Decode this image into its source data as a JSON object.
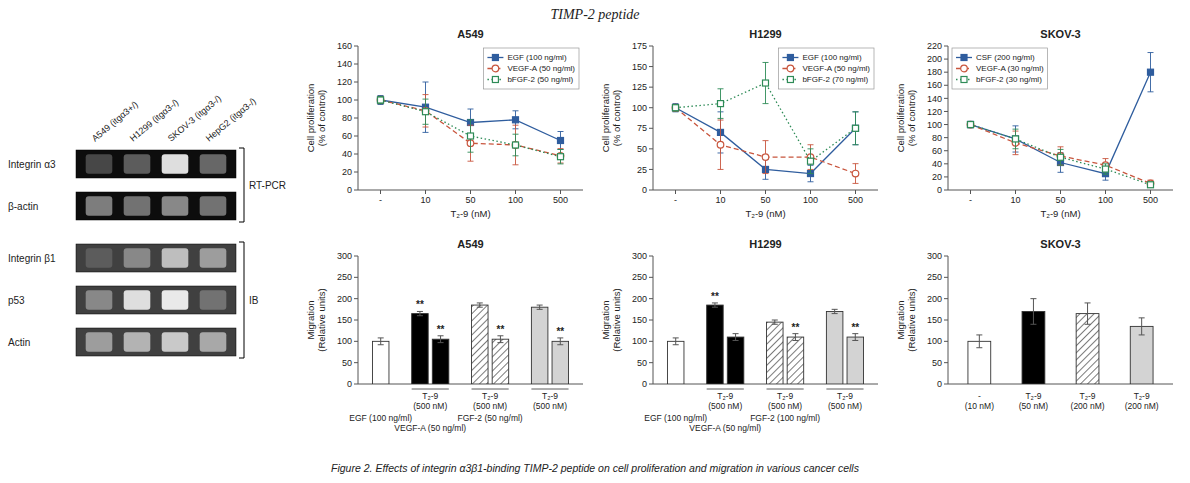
{
  "title": "TIMP-2  peptide",
  "caption": "Figure 2. Effects of integrin α3β1-binding TIMP-2 peptide on cell proliferation and migration in various cancer cells",
  "chart_data": [
    {
      "type": "heatmap",
      "columns": [
        "A549 (itgα3+/)",
        "H1299 (itgα3-/)",
        "SKOV-3 (itgα3-/)",
        "HepG2 (itgα3-/)"
      ],
      "rows": [
        "Integrin α3",
        "β-actin",
        "Integrin β1",
        "p53",
        "Actin"
      ],
      "row_groups": [
        "RT-PCR",
        "RT-PCR",
        "IB",
        "IB",
        "IB"
      ],
      "values": [
        [
          0.85,
          0.75,
          0.15,
          0.7
        ],
        [
          0.6,
          0.65,
          0.55,
          0.65
        ],
        [
          0.75,
          0.55,
          0.3,
          0.45
        ],
        [
          0.55,
          0.15,
          0.1,
          0.65
        ],
        [
          0.45,
          0.35,
          0.25,
          0.4
        ]
      ],
      "background": [
        0.05,
        0.05,
        0.25,
        0.25,
        0.25
      ]
    },
    {
      "type": "line",
      "title": "A549",
      "xlabel": "T₂-9 (nM)",
      "ylabel": "Cell proliferation\n(% of control)",
      "categories": [
        "-",
        "10",
        "50",
        "100",
        "500"
      ],
      "ylim": [
        0,
        160
      ],
      "yticks": [
        0,
        20,
        40,
        60,
        80,
        100,
        120,
        140,
        160
      ],
      "legend": "upper-right",
      "series": [
        {
          "name": "EGF (100 ng/ml)",
          "values": [
            100,
            92,
            75,
            78,
            55
          ],
          "errors": [
            5,
            28,
            15,
            10,
            10
          ],
          "marker": "square",
          "line_style": "solid"
        },
        {
          "name": "VEGF-A (50 ng/ml)",
          "values": [
            100,
            88,
            52,
            50,
            38
          ],
          "errors": [
            4,
            18,
            20,
            22,
            8
          ],
          "marker": "circle-open",
          "line_style": "dashed"
        },
        {
          "name": "bFGF-2 (50 ng/ml)",
          "values": [
            100,
            87,
            60,
            50,
            37
          ],
          "errors": [
            4,
            14,
            18,
            12,
            8
          ],
          "marker": "square-open",
          "line_style": "dotted"
        }
      ]
    },
    {
      "type": "line",
      "title": "H1299",
      "xlabel": "T₂-9 (nM)",
      "ylabel": "Cell proliferation\n(% of control)",
      "categories": [
        "-",
        "10",
        "50",
        "100",
        "500"
      ],
      "ylim": [
        0,
        175
      ],
      "yticks": [
        0,
        25,
        50,
        75,
        100,
        125,
        150,
        175
      ],
      "legend": "upper-right",
      "series": [
        {
          "name": "EGF (100 ng/ml)",
          "values": [
            100,
            70,
            25,
            20,
            75
          ],
          "errors": [
            5,
            25,
            12,
            10,
            20
          ],
          "marker": "square",
          "line_style": "solid"
        },
        {
          "name": "VEGF-A (50 ng/ml)",
          "values": [
            100,
            55,
            40,
            40,
            20
          ],
          "errors": [
            4,
            30,
            20,
            15,
            12
          ],
          "marker": "circle-open",
          "line_style": "dashed"
        },
        {
          "name": "bFGF-2 (70 ng/ml)",
          "values": [
            100,
            105,
            130,
            35,
            75
          ],
          "errors": [
            4,
            18,
            25,
            15,
            20
          ],
          "marker": "square-open",
          "line_style": "dotted"
        }
      ]
    },
    {
      "type": "line",
      "title": "SKOV-3",
      "xlabel": "T₂-9 (nM)",
      "ylabel": "Cell proliferation\n(% of control)",
      "categories": [
        "-",
        "10",
        "50",
        "100",
        "500"
      ],
      "ylim": [
        0,
        220
      ],
      "yticks": [
        0,
        20,
        40,
        60,
        80,
        100,
        120,
        140,
        160,
        180,
        200,
        220
      ],
      "legend": "upper-left",
      "series": [
        {
          "name": "CSF (200 ng/ml)",
          "values": [
            100,
            78,
            42,
            25,
            180
          ],
          "errors": [
            5,
            20,
            15,
            10,
            30
          ],
          "marker": "square",
          "line_style": "solid"
        },
        {
          "name": "VEGF-A (30 ng/ml)",
          "values": [
            100,
            72,
            52,
            38,
            10
          ],
          "errors": [
            4,
            18,
            14,
            10,
            5
          ],
          "marker": "circle-open",
          "line_style": "dashed"
        },
        {
          "name": "bFGF-2 (30 ng/ml)",
          "values": [
            100,
            78,
            50,
            32,
            8
          ],
          "errors": [
            4,
            15,
            12,
            8,
            4
          ],
          "marker": "square-open",
          "line_style": "dotted"
        }
      ]
    },
    {
      "type": "bar",
      "title": "A549",
      "ylabel": "Migration\n(Relative units)",
      "ylim": [
        0,
        300
      ],
      "yticks": [
        0,
        50,
        100,
        150,
        200,
        250,
        300
      ],
      "categories": [
        null,
        "T₂-9\n(500 nM)",
        "T₂-9\n(500 nM)",
        "T₂-9\n(500 nM)"
      ],
      "conditions": [
        "EGF (100 ng/ml)",
        "VEGF-A (50 ng/ml)",
        "FGF-2 (50 ng/ml)",
        null
      ],
      "values": [
        [
          100
        ],
        [
          165,
          105
        ],
        [
          185,
          105
        ],
        [
          180,
          100
        ]
      ],
      "errors": [
        [
          8
        ],
        [
          5,
          8
        ],
        [
          5,
          8
        ],
        [
          5,
          8
        ]
      ],
      "colors": [
        [
          "white"
        ],
        [
          "black",
          "black"
        ],
        [
          "hatched",
          "hatched"
        ],
        [
          "lightgray",
          "lightgray"
        ]
      ],
      "annotations": [
        [
          null
        ],
        [
          "**",
          "**"
        ],
        [
          null,
          "**"
        ],
        [
          null,
          "**"
        ]
      ]
    },
    {
      "type": "bar",
      "title": "H1299",
      "ylabel": "Migration\n(Relative units)",
      "ylim": [
        0,
        300
      ],
      "yticks": [
        0,
        50,
        100,
        150,
        200,
        250,
        300
      ],
      "categories": [
        null,
        "T₂-9\n(500 nM)",
        "T₂-9\n(500 nM)",
        "T₂-9\n(500 nM)"
      ],
      "conditions": [
        "EGF (100 ng/ml)",
        "VEGF-A (50 ng/ml)",
        "FGF-2 (100 ng/ml)",
        null
      ],
      "values": [
        [
          100
        ],
        [
          185,
          110
        ],
        [
          145,
          110
        ],
        [
          170,
          110
        ]
      ],
      "errors": [
        [
          8
        ],
        [
          5,
          8
        ],
        [
          5,
          8
        ],
        [
          5,
          8
        ]
      ],
      "colors": [
        [
          "white"
        ],
        [
          "black",
          "black"
        ],
        [
          "hatched",
          "hatched"
        ],
        [
          "lightgray",
          "lightgray"
        ]
      ],
      "annotations": [
        [
          null
        ],
        [
          "**",
          null
        ],
        [
          null,
          "**"
        ],
        [
          null,
          "**"
        ]
      ]
    },
    {
      "type": "bar",
      "title": "SKOV-3",
      "ylabel": "Migration\n(Relative units)",
      "ylim": [
        0,
        300
      ],
      "yticks": [
        0,
        50,
        100,
        150,
        200,
        250,
        300
      ],
      "categories": [
        "-\n(10 nM)",
        "T₂-9\n(50 nM)",
        "T₂-9\n(200 nM)",
        "T₂-9\n(200 nM)"
      ],
      "values": [
        [
          100
        ],
        [
          170
        ],
        [
          165
        ],
        [
          135
        ]
      ],
      "errors": [
        [
          15
        ],
        [
          30
        ],
        [
          25
        ],
        [
          20
        ]
      ],
      "colors": [
        [
          "white"
        ],
        [
          "black"
        ],
        [
          "hatched"
        ],
        [
          "lightgray"
        ]
      ]
    }
  ]
}
